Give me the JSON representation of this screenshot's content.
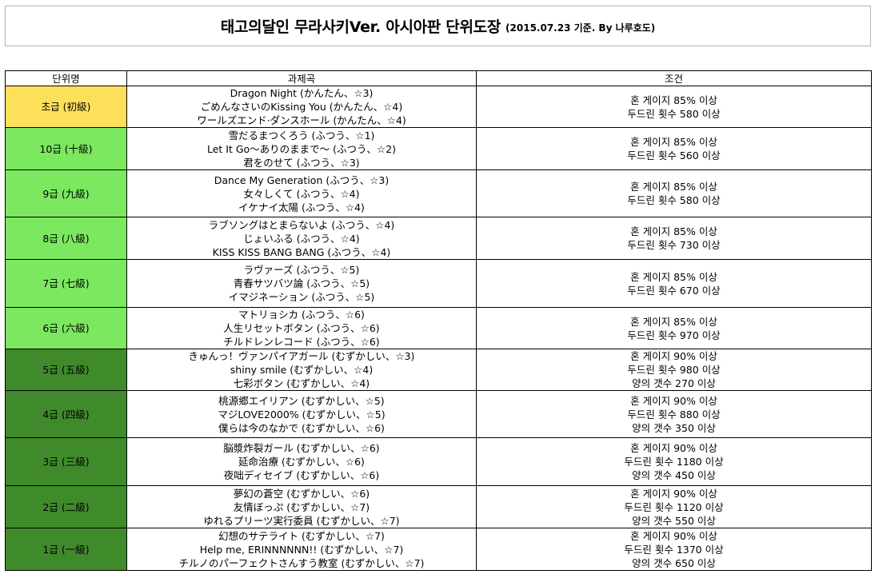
{
  "title": {
    "main": "태고의달인 무라사키Ver. 아시아판 단위도장",
    "sub": "(2015.07.23 기준. By 나루호도)"
  },
  "headers": [
    "단위명",
    "과제곡",
    "조건"
  ],
  "colors": {
    "yellow": "#fde05a",
    "light_green": "#7be860",
    "dark_green": "#3f8a2b"
  },
  "rows": [
    {
      "rank": "초급 (初級)",
      "color": "yellow",
      "height": 52,
      "songs": [
        "Dragon Night (かんたん、☆3)",
        "ごめんなさいのKissing You (かんたん、☆4)",
        "ワールズエンド·ダンスホール (かんたん、☆4)"
      ],
      "conditions": [
        "혼 게이지 85% 이상",
        "두드린 횟수 580 이상"
      ]
    },
    {
      "rank": "10급 (十級)",
      "color": "light_green",
      "height": 53,
      "songs": [
        "雪だるまつくろう (ふつう、☆1)",
        "Let It Go～ありのままで～ (ふつう、☆2)",
        "君をのせて (ふつう、☆3)"
      ],
      "conditions": [
        "혼 게이지 85% 이상",
        "두드린 횟수 560 이상"
      ]
    },
    {
      "rank": "9급 (九級)",
      "color": "light_green",
      "height": 59,
      "songs": [
        "Dance My Generation (ふつう、☆3)",
        "女々しくて (ふつう、☆4)",
        "イケナイ太陽 (ふつう、☆4)"
      ],
      "conditions": [
        "혼 게이지 85% 이상",
        "두드린 횟수 580 이상"
      ]
    },
    {
      "rank": "8급 (八級)",
      "color": "light_green",
      "height": 53,
      "songs": [
        "ラブソングはとまらないよ (ふつう、☆4)",
        "じょいふる (ふつう、☆4)",
        "KISS KISS BANG BANG (ふつう、☆4)"
      ],
      "conditions": [
        "혼 게이지 85% 이상",
        "두드린 횟수 730 이상"
      ]
    },
    {
      "rank": "7급 (七級)",
      "color": "light_green",
      "height": 60,
      "songs": [
        "ラヴァーズ (ふつう、☆5)",
        "青春サツバツ論 (ふつう、☆5)",
        "イマジネーション (ふつう、☆5)"
      ],
      "conditions": [
        "혼 게이지 85% 이상",
        "두드린 횟수 670 이상"
      ]
    },
    {
      "rank": "6급 (六級)",
      "color": "light_green",
      "height": 52,
      "songs": [
        "マトリョシカ (ふつう、☆6)",
        "人生リセットボタン (ふつう、☆6)",
        "チルドレンレコード (ふつう、☆6)"
      ],
      "conditions": [
        "혼 게이지 85% 이상",
        "두드린 횟수 970 이상"
      ]
    },
    {
      "rank": "5급 (五級)",
      "color": "dark_green",
      "height": 52,
      "songs": [
        "きゅんっ！ヴァンパイアガール (むずかしい、☆3)",
        "shiny smile (むずかしい、☆4)",
        "七彩ボタン (むずかしい、☆4)"
      ],
      "conditions": [
        "혼 게이지 90% 이상",
        "두드린 횟수 980 이상",
        "양의 갯수 270 이상"
      ]
    },
    {
      "rank": "4급 (四級)",
      "color": "dark_green",
      "height": 59,
      "songs": [
        "桃源郷エイリアン (むずかしい、☆5)",
        "マジLOVE2000% (むずかしい、☆5)",
        "僕らは今のなかで (むずかしい、☆6)"
      ],
      "conditions": [
        "혼 게이지 90% 이상",
        "두드린 횟수 880 이상",
        "양의 갯수 350 이상"
      ]
    },
    {
      "rank": "3급 (三級)",
      "color": "dark_green",
      "height": 60,
      "songs": [
        "脳漿炸裂ガール (むずかしい、☆6)",
        "延命治療 (むずかしい、☆6)",
        "夜咄ディセイブ (むずかしい、☆6)"
      ],
      "conditions": [
        "혼 게이지 90% 이상",
        "두드린 횟수 1180 이상",
        "양의 갯수 450 이상"
      ]
    },
    {
      "rank": "2급 (二級)",
      "color": "dark_green",
      "height": 53,
      "songs": [
        "夢幻の蒼空 (むずかしい、☆6)",
        "友情ぼっぷ (むずかしい、☆7)",
        "ゆれるプリーツ実行委員 (むずかしい、☆7)"
      ],
      "conditions": [
        "혼 게이지 90% 이상",
        "두드린 횟수 1120 이상",
        "양의 갯수 550 이상"
      ]
    },
    {
      "rank": "1급 (一級)",
      "color": "dark_green",
      "height": 53,
      "songs": [
        "幻想のサテライト (むずかしい、☆7)",
        "Help me, ERINNNNNN!! (むずかしい、☆7)",
        "チルノのパーフェクトさんすう教室 (むずかしい、☆7)"
      ],
      "conditions": [
        "혼 게이지 90% 이상",
        "두드린 횟수 1370 이상",
        "양의 갯수 650 이상"
      ]
    }
  ]
}
